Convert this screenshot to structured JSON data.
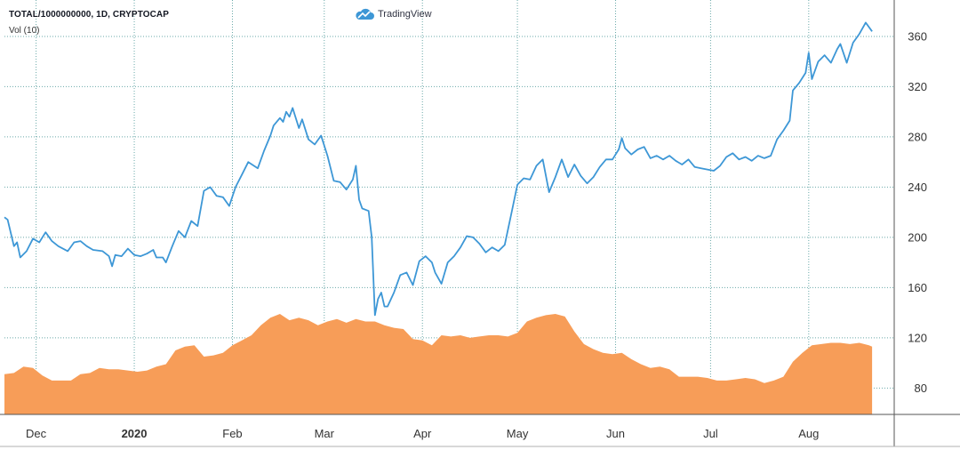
{
  "header": {
    "symbol": "TOTAL/1000000000, 1D, CRYPTOCAP",
    "volume_label": "Vol (10)",
    "brand": "TradingView"
  },
  "colors": {
    "price_line": "#3d97d6",
    "volume_fill": "#f79d58",
    "grid": "#6aa9a9",
    "axis": "#555555"
  },
  "chart_data": {
    "type": "line",
    "title": "TOTAL/1000000000, 1D, CRYPTOCAP",
    "y_ticks": [
      80,
      120,
      160,
      200,
      240,
      280,
      320,
      360
    ],
    "ylim": [
      59,
      389
    ],
    "grid": true,
    "x_ticks": [
      {
        "label": "Dec",
        "date": "2019-12-01",
        "bold": false
      },
      {
        "label": "2020",
        "date": "2020-01-01",
        "bold": true
      },
      {
        "label": "Feb",
        "date": "2020-02-01",
        "bold": false
      },
      {
        "label": "Mar",
        "date": "2020-03-01",
        "bold": false
      },
      {
        "label": "Apr",
        "date": "2020-04-01",
        "bold": false
      },
      {
        "label": "May",
        "date": "2020-05-01",
        "bold": false
      },
      {
        "label": "Jun",
        "date": "2020-06-01",
        "bold": false
      },
      {
        "label": "Jul",
        "date": "2020-07-01",
        "bold": false
      },
      {
        "label": "Aug",
        "date": "2020-08-01",
        "bold": false
      }
    ],
    "xlim": [
      "2019-11-21",
      "2020-08-28"
    ],
    "series": [
      {
        "kind": "line",
        "points": [
          [
            "2019-11-21",
            216
          ],
          [
            "2019-11-22",
            214
          ],
          [
            "2019-11-24",
            193
          ],
          [
            "2019-11-25",
            196
          ],
          [
            "2019-11-26",
            184
          ],
          [
            "2019-11-28",
            189
          ],
          [
            "2019-11-30",
            199
          ],
          [
            "2019-12-02",
            196
          ],
          [
            "2019-12-04",
            204
          ],
          [
            "2019-12-06",
            197
          ],
          [
            "2019-12-08",
            193
          ],
          [
            "2019-12-11",
            189
          ],
          [
            "2019-12-13",
            196
          ],
          [
            "2019-12-15",
            197
          ],
          [
            "2019-12-17",
            193
          ],
          [
            "2019-12-19",
            190
          ],
          [
            "2019-12-22",
            189
          ],
          [
            "2019-12-24",
            185
          ],
          [
            "2019-12-25",
            177
          ],
          [
            "2019-12-26",
            186
          ],
          [
            "2019-12-28",
            185
          ],
          [
            "2019-12-30",
            191
          ],
          [
            "2020-01-01",
            186
          ],
          [
            "2020-01-03",
            185
          ],
          [
            "2020-01-05",
            187
          ],
          [
            "2020-01-07",
            190
          ],
          [
            "2020-01-08",
            184
          ],
          [
            "2020-01-10",
            184
          ],
          [
            "2020-01-11",
            180
          ],
          [
            "2020-01-13",
            193
          ],
          [
            "2020-01-15",
            205
          ],
          [
            "2020-01-17",
            200
          ],
          [
            "2020-01-19",
            213
          ],
          [
            "2020-01-21",
            209
          ],
          [
            "2020-01-23",
            237
          ],
          [
            "2020-01-25",
            240
          ],
          [
            "2020-01-27",
            233
          ],
          [
            "2020-01-29",
            232
          ],
          [
            "2020-01-31",
            225
          ],
          [
            "2020-02-02",
            240
          ],
          [
            "2020-02-04",
            250
          ],
          [
            "2020-02-06",
            260
          ],
          [
            "2020-02-09",
            255
          ],
          [
            "2020-02-11",
            269
          ],
          [
            "2020-02-13",
            281
          ],
          [
            "2020-02-14",
            289
          ],
          [
            "2020-02-16",
            295
          ],
          [
            "2020-02-17",
            292
          ],
          [
            "2020-02-18",
            300
          ],
          [
            "2020-02-19",
            296
          ],
          [
            "2020-02-20",
            303
          ],
          [
            "2020-02-22",
            287
          ],
          [
            "2020-02-23",
            294
          ],
          [
            "2020-02-25",
            278
          ],
          [
            "2020-02-27",
            274
          ],
          [
            "2020-02-29",
            281
          ],
          [
            "2020-03-02",
            265
          ],
          [
            "2020-03-04",
            245
          ],
          [
            "2020-03-06",
            244
          ],
          [
            "2020-03-08",
            238
          ],
          [
            "2020-03-10",
            246
          ],
          [
            "2020-03-11",
            257
          ],
          [
            "2020-03-12",
            230
          ],
          [
            "2020-03-13",
            223
          ],
          [
            "2020-03-14",
            222
          ],
          [
            "2020-03-15",
            221
          ],
          [
            "2020-03-16",
            200
          ],
          [
            "2020-03-17",
            138
          ],
          [
            "2020-03-18",
            151
          ],
          [
            "2020-03-19",
            156
          ],
          [
            "2020-03-20",
            145
          ],
          [
            "2020-03-21",
            145
          ],
          [
            "2020-03-23",
            156
          ],
          [
            "2020-03-25",
            170
          ],
          [
            "2020-03-27",
            172
          ],
          [
            "2020-03-29",
            162
          ],
          [
            "2020-03-31",
            181
          ],
          [
            "2020-04-02",
            185
          ],
          [
            "2020-04-04",
            180
          ],
          [
            "2020-04-05",
            172
          ],
          [
            "2020-04-07",
            163
          ],
          [
            "2020-04-09",
            180
          ],
          [
            "2020-04-11",
            185
          ],
          [
            "2020-04-13",
            192
          ],
          [
            "2020-04-15",
            201
          ],
          [
            "2020-04-17",
            200
          ],
          [
            "2020-04-19",
            195
          ],
          [
            "2020-04-21",
            188
          ],
          [
            "2020-04-23",
            192
          ],
          [
            "2020-04-25",
            189
          ],
          [
            "2020-04-27",
            194
          ],
          [
            "2020-04-29",
            218
          ],
          [
            "2020-05-01",
            242
          ],
          [
            "2020-05-03",
            247
          ],
          [
            "2020-05-05",
            246
          ],
          [
            "2020-05-07",
            257
          ],
          [
            "2020-05-09",
            262
          ],
          [
            "2020-05-11",
            236
          ],
          [
            "2020-05-13",
            248
          ],
          [
            "2020-05-15",
            262
          ],
          [
            "2020-05-17",
            248
          ],
          [
            "2020-05-19",
            258
          ],
          [
            "2020-05-21",
            249
          ],
          [
            "2020-05-23",
            243
          ],
          [
            "2020-05-25",
            248
          ],
          [
            "2020-05-27",
            256
          ],
          [
            "2020-05-29",
            262
          ],
          [
            "2020-05-31",
            262
          ],
          [
            "2020-06-02",
            270
          ],
          [
            "2020-06-03",
            279
          ],
          [
            "2020-06-04",
            271
          ],
          [
            "2020-06-06",
            266
          ],
          [
            "2020-06-08",
            270
          ],
          [
            "2020-06-10",
            272
          ],
          [
            "2020-06-12",
            263
          ],
          [
            "2020-06-14",
            265
          ],
          [
            "2020-06-16",
            262
          ],
          [
            "2020-06-18",
            265
          ],
          [
            "2020-06-20",
            261
          ],
          [
            "2020-06-22",
            258
          ],
          [
            "2020-06-24",
            262
          ],
          [
            "2020-06-26",
            256
          ],
          [
            "2020-06-28",
            255
          ],
          [
            "2020-06-30",
            254
          ],
          [
            "2020-07-02",
            253
          ],
          [
            "2020-07-04",
            257
          ],
          [
            "2020-07-06",
            264
          ],
          [
            "2020-07-08",
            267
          ],
          [
            "2020-07-10",
            262
          ],
          [
            "2020-07-12",
            264
          ],
          [
            "2020-07-14",
            261
          ],
          [
            "2020-07-16",
            265
          ],
          [
            "2020-07-18",
            263
          ],
          [
            "2020-07-20",
            265
          ],
          [
            "2020-07-22",
            278
          ],
          [
            "2020-07-24",
            285
          ],
          [
            "2020-07-26",
            293
          ],
          [
            "2020-07-27",
            317
          ],
          [
            "2020-07-29",
            323
          ],
          [
            "2020-07-31",
            331
          ],
          [
            "2020-08-01",
            347
          ],
          [
            "2020-08-02",
            326
          ],
          [
            "2020-08-04",
            340
          ],
          [
            "2020-08-06",
            345
          ],
          [
            "2020-08-08",
            339
          ],
          [
            "2020-08-10",
            350
          ],
          [
            "2020-08-11",
            354
          ],
          [
            "2020-08-13",
            339
          ],
          [
            "2020-08-15",
            355
          ],
          [
            "2020-08-17",
            362
          ],
          [
            "2020-08-19",
            371
          ],
          [
            "2020-08-21",
            364
          ]
        ]
      },
      {
        "kind": "area",
        "points": [
          [
            "2019-11-21",
            91
          ],
          [
            "2019-11-24",
            92
          ],
          [
            "2019-11-27",
            97
          ],
          [
            "2019-11-30",
            96
          ],
          [
            "2019-12-03",
            90
          ],
          [
            "2019-12-06",
            86
          ],
          [
            "2019-12-09",
            86
          ],
          [
            "2019-12-12",
            86
          ],
          [
            "2019-12-15",
            91
          ],
          [
            "2019-12-18",
            92
          ],
          [
            "2019-12-21",
            96
          ],
          [
            "2019-12-24",
            95
          ],
          [
            "2019-12-27",
            95
          ],
          [
            "2019-12-30",
            94
          ],
          [
            "2020-01-02",
            93
          ],
          [
            "2020-01-05",
            94
          ],
          [
            "2020-01-08",
            97
          ],
          [
            "2020-01-11",
            99
          ],
          [
            "2020-01-14",
            110
          ],
          [
            "2020-01-17",
            113
          ],
          [
            "2020-01-20",
            114
          ],
          [
            "2020-01-23",
            105
          ],
          [
            "2020-01-26",
            106
          ],
          [
            "2020-01-29",
            108
          ],
          [
            "2020-02-01",
            114
          ],
          [
            "2020-02-04",
            118
          ],
          [
            "2020-02-07",
            122
          ],
          [
            "2020-02-10",
            130
          ],
          [
            "2020-02-13",
            136
          ],
          [
            "2020-02-16",
            139
          ],
          [
            "2020-02-19",
            134
          ],
          [
            "2020-02-22",
            136
          ],
          [
            "2020-02-25",
            134
          ],
          [
            "2020-02-28",
            130
          ],
          [
            "2020-03-02",
            133
          ],
          [
            "2020-03-05",
            135
          ],
          [
            "2020-03-08",
            132
          ],
          [
            "2020-03-11",
            135
          ],
          [
            "2020-03-14",
            133
          ],
          [
            "2020-03-17",
            133
          ],
          [
            "2020-03-20",
            130
          ],
          [
            "2020-03-23",
            128
          ],
          [
            "2020-03-26",
            127
          ],
          [
            "2020-03-29",
            119
          ],
          [
            "2020-04-01",
            118
          ],
          [
            "2020-04-04",
            114
          ],
          [
            "2020-04-07",
            122
          ],
          [
            "2020-04-10",
            121
          ],
          [
            "2020-04-13",
            122
          ],
          [
            "2020-04-16",
            120
          ],
          [
            "2020-04-19",
            121
          ],
          [
            "2020-04-22",
            122
          ],
          [
            "2020-04-25",
            122
          ],
          [
            "2020-04-28",
            121
          ],
          [
            "2020-05-01",
            124
          ],
          [
            "2020-05-04",
            133
          ],
          [
            "2020-05-07",
            136
          ],
          [
            "2020-05-10",
            138
          ],
          [
            "2020-05-13",
            139
          ],
          [
            "2020-05-16",
            137
          ],
          [
            "2020-05-19",
            125
          ],
          [
            "2020-05-22",
            115
          ],
          [
            "2020-05-25",
            111
          ],
          [
            "2020-05-28",
            108
          ],
          [
            "2020-05-31",
            107
          ],
          [
            "2020-06-03",
            108
          ],
          [
            "2020-06-06",
            103
          ],
          [
            "2020-06-09",
            99
          ],
          [
            "2020-06-12",
            96
          ],
          [
            "2020-06-15",
            97
          ],
          [
            "2020-06-18",
            95
          ],
          [
            "2020-06-21",
            89
          ],
          [
            "2020-06-24",
            89
          ],
          [
            "2020-06-27",
            89
          ],
          [
            "2020-06-30",
            88
          ],
          [
            "2020-07-03",
            86
          ],
          [
            "2020-07-06",
            86
          ],
          [
            "2020-07-09",
            87
          ],
          [
            "2020-07-12",
            88
          ],
          [
            "2020-07-15",
            87
          ],
          [
            "2020-07-18",
            84
          ],
          [
            "2020-07-21",
            86
          ],
          [
            "2020-07-24",
            89
          ],
          [
            "2020-07-27",
            101
          ],
          [
            "2020-07-30",
            108
          ],
          [
            "2020-08-02",
            114
          ],
          [
            "2020-08-05",
            115
          ],
          [
            "2020-08-08",
            116
          ],
          [
            "2020-08-11",
            116
          ],
          [
            "2020-08-14",
            115
          ],
          [
            "2020-08-17",
            116
          ],
          [
            "2020-08-20",
            114
          ],
          [
            "2020-08-21",
            113
          ]
        ]
      }
    ]
  }
}
